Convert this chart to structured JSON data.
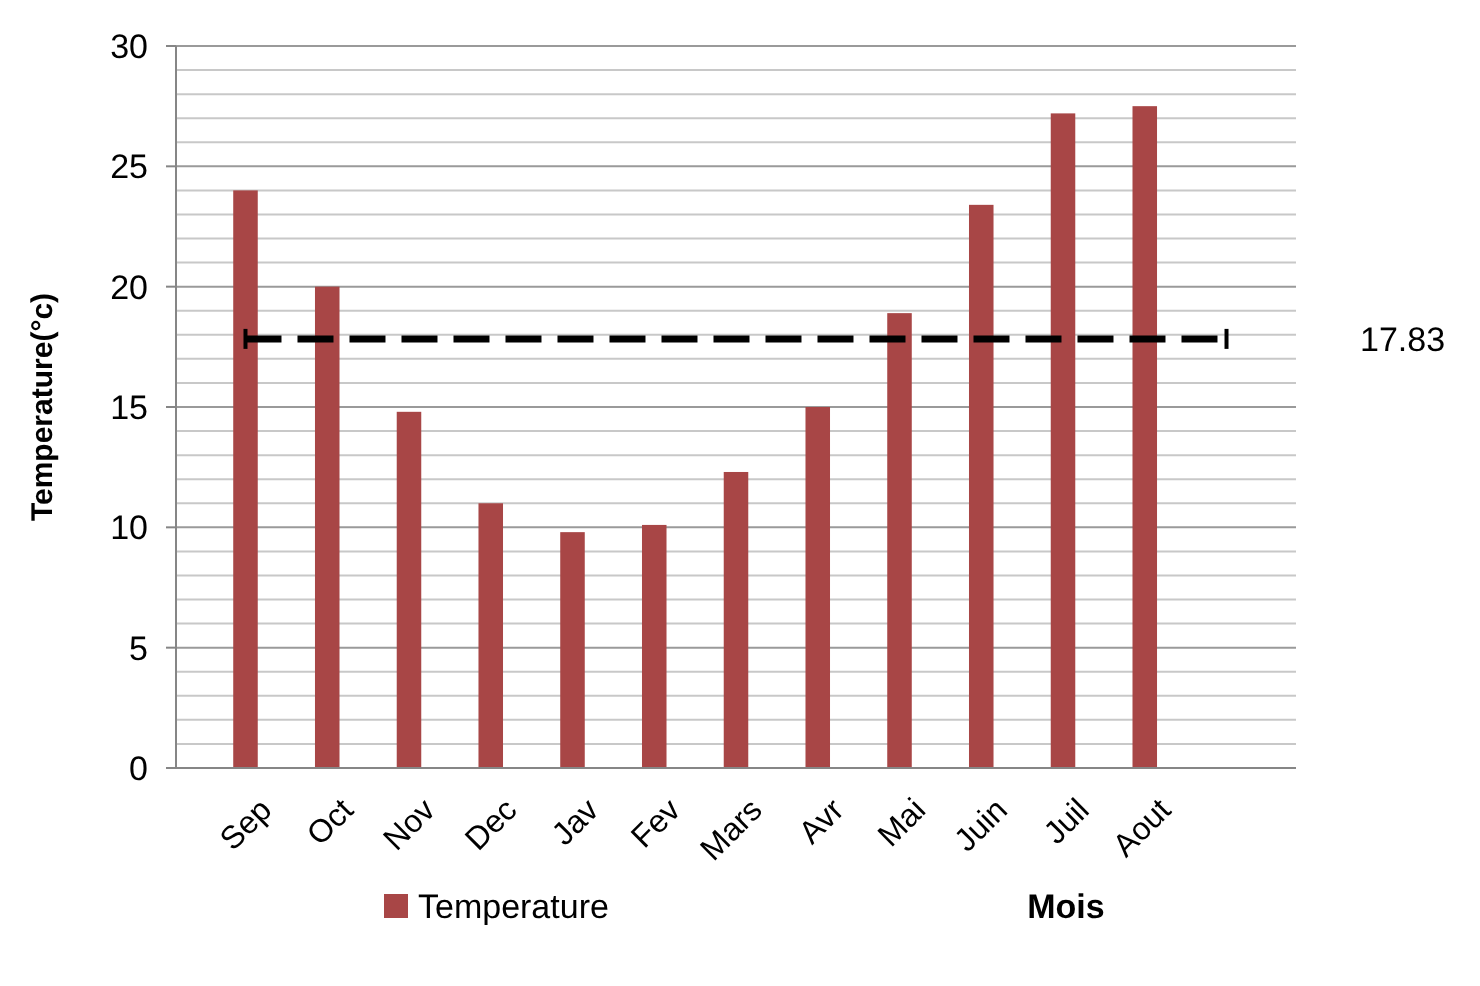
{
  "chart_data": {
    "type": "bar",
    "xlabel": "Mois",
    "ylabel": "Temperature(°c)",
    "categories": [
      "Sep",
      "Oct",
      "Nov",
      "Dec",
      "Jav",
      "Fev",
      "Mars",
      "Avr",
      "Mai",
      "Juin",
      "Juil",
      "Aout",
      null
    ],
    "series": [
      {
        "name": "Temperature",
        "color": "#a84646",
        "values": [
          24,
          20,
          14.8,
          11,
          9.8,
          10.1,
          12.3,
          15,
          18.9,
          23.4,
          27.2,
          27.5,
          null
        ]
      }
    ],
    "ylim": [
      0,
      30
    ],
    "yticks": [
      0,
      {
        "value": 1,
        "label": null
      },
      {
        "value": 2,
        "label": null
      },
      {
        "value": 3,
        "label": null
      },
      {
        "value": 4,
        "label": null
      },
      5,
      {
        "value": 6,
        "label": null
      },
      {
        "value": 7,
        "label": null
      },
      {
        "value": 8,
        "label": null
      },
      {
        "value": 9,
        "label": null
      },
      10,
      {
        "value": 11,
        "label": null
      },
      {
        "value": 12,
        "label": null
      },
      {
        "value": 13,
        "label": null
      },
      {
        "value": 14,
        "label": null
      },
      15,
      {
        "value": 16,
        "label": null
      },
      {
        "value": 17,
        "label": null
      },
      {
        "value": 18,
        "label": null
      },
      {
        "value": 19,
        "label": null
      },
      20,
      {
        "value": 21,
        "label": null
      },
      {
        "value": 22,
        "label": null
      },
      {
        "value": 23,
        "label": null
      },
      {
        "value": 24,
        "label": null
      },
      25,
      {
        "value": 26,
        "label": null
      },
      {
        "value": 27,
        "label": null
      },
      {
        "value": 28,
        "label": null
      },
      {
        "value": 29,
        "label": null
      },
      30
    ],
    "ref_lines": [
      {
        "axis": "y",
        "value": 17.83,
        "label": "17.83",
        "color": "#000000",
        "line_style": "dashed"
      }
    ],
    "grid": "y",
    "legend": "bottom"
  }
}
